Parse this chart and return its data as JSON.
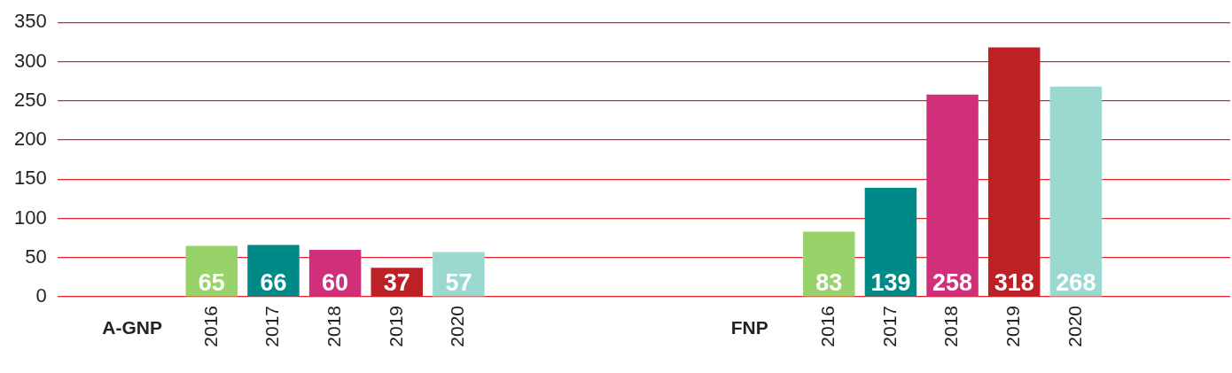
{
  "chart_data": {
    "type": "bar",
    "categories": [
      null,
      "A-GNP",
      "2016",
      "2017",
      "2018",
      "2019",
      "2020",
      null,
      null,
      null,
      null,
      "FNP",
      "2016",
      "2017",
      "2018",
      "2019",
      "2020",
      null,
      null
    ],
    "values": [
      null,
      null,
      65,
      66,
      60,
      37,
      57,
      null,
      null,
      null,
      null,
      null,
      83,
      139,
      258,
      318,
      268,
      null,
      null
    ],
    "colors": [
      "#97d36a",
      "#97d36a",
      "#97d36a",
      "#008a87",
      "#d0307a",
      "#bd2025",
      "#9bd9d0",
      "#97d36a",
      "#97d36a",
      "#97d36a",
      "#97d36a",
      "#97d36a",
      "#97d36a",
      "#008a87",
      "#d0307a",
      "#bd2025",
      "#9bd9d0",
      "#97d36a",
      "#97d36a"
    ],
    "ylim": [
      0,
      350
    ],
    "yticks": [
      0,
      50,
      100,
      150,
      200,
      250,
      300,
      350
    ],
    "grid": "y",
    "data_labels": true,
    "legend": false
  }
}
